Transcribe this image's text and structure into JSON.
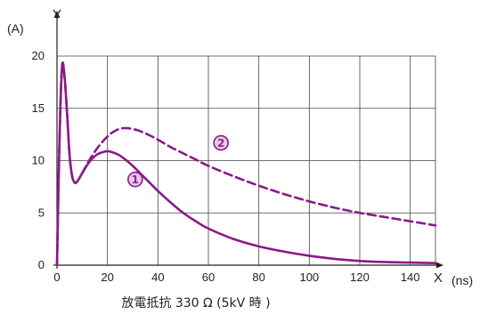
{
  "chart_data": {
    "type": "line",
    "xlabel": "X",
    "ylabel": "Y",
    "x_unit": "(ns)",
    "y_unit": "(A)",
    "caption": "放電抵抗 330 Ω (5kV 時 )",
    "xlim": [
      0,
      150
    ],
    "ylim": [
      0,
      20
    ],
    "x_ticks": [
      "0",
      "20",
      "40",
      "60",
      "80",
      "100",
      "120",
      "140"
    ],
    "y_ticks": [
      "0",
      "5",
      "10",
      "15",
      "20"
    ],
    "grid": true,
    "color": "#8b1a89",
    "series": [
      {
        "marker": "1",
        "style": "solid",
        "x": [
          0,
          1,
          2,
          3,
          4,
          5,
          6,
          7,
          8,
          10,
          12,
          14,
          16,
          18,
          20,
          22,
          24,
          26,
          30,
          35,
          40,
          45,
          50,
          55,
          60,
          70,
          80,
          90,
          100,
          110,
          120,
          130,
          140,
          150
        ],
        "y": [
          0,
          12,
          19,
          18,
          14.5,
          10.5,
          8.5,
          7.9,
          8.0,
          8.8,
          9.6,
          10.2,
          10.6,
          10.8,
          10.9,
          10.8,
          10.6,
          10.3,
          9.5,
          8.3,
          7.1,
          6.0,
          5.0,
          4.2,
          3.5,
          2.5,
          1.8,
          1.3,
          0.9,
          0.6,
          0.4,
          0.3,
          0.25,
          0.2
        ]
      },
      {
        "marker": "2",
        "style": "dashed",
        "x": [
          0,
          1,
          2,
          3,
          4,
          5,
          6,
          7,
          8,
          10,
          12,
          14,
          16,
          18,
          20,
          22,
          25,
          28,
          32,
          36,
          40,
          45,
          50,
          55,
          60,
          70,
          80,
          90,
          100,
          110,
          120,
          130,
          140,
          150
        ],
        "y": [
          0,
          12,
          19,
          18,
          14.5,
          10.5,
          8.5,
          7.9,
          8.0,
          8.8,
          9.7,
          10.5,
          11.2,
          11.8,
          12.3,
          12.7,
          13.05,
          13.1,
          12.9,
          12.5,
          12.0,
          11.3,
          10.7,
          10.1,
          9.5,
          8.5,
          7.6,
          6.8,
          6.1,
          5.5,
          5.0,
          4.6,
          4.2,
          3.8
        ]
      }
    ],
    "annotations": [
      {
        "label": "1",
        "x": 31,
        "y": 8.2
      },
      {
        "label": "2",
        "x": 65,
        "y": 11.7
      }
    ]
  }
}
